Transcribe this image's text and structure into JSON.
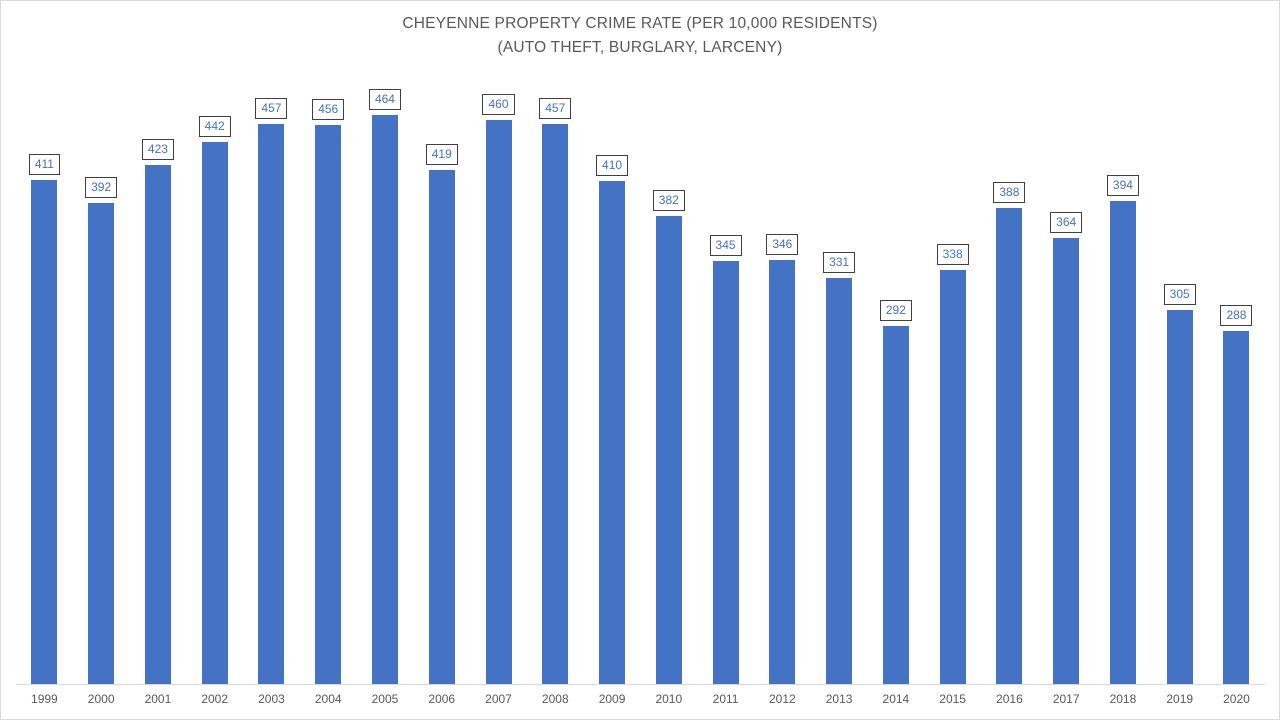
{
  "chart": {
    "title_line1": "CHEYENNE PROPERTY CRIME RATE (PER 10,000 RESIDENTS)",
    "title_line2": "(AUTO THEFT, BURGLARY, LARCENY)"
  },
  "chart_data": {
    "type": "bar",
    "title": "CHEYENNE PROPERTY CRIME RATE (PER 10,000 RESIDENTS) (AUTO THEFT, BURGLARY, LARCENY)",
    "categories": [
      "1999",
      "2000",
      "2001",
      "2002",
      "2003",
      "2004",
      "2005",
      "2006",
      "2007",
      "2008",
      "2009",
      "2010",
      "2011",
      "2012",
      "2013",
      "2014",
      "2015",
      "2016",
      "2017",
      "2018",
      "2019",
      "2020"
    ],
    "values": [
      411,
      392,
      423,
      442,
      457,
      456,
      464,
      419,
      460,
      457,
      410,
      382,
      345,
      346,
      331,
      292,
      338,
      388,
      364,
      394,
      305,
      288
    ],
    "xlabel": "",
    "ylabel": "",
    "ylim": [
      0,
      500
    ],
    "grid": false,
    "legend": false,
    "data_labels": "boxed values above each bar",
    "colors": {
      "bar": "#4472c4",
      "data_label_text": "#4472c4",
      "data_label_border": "#404040",
      "title_text": "#595959",
      "axis_text": "#595959",
      "axis_line": "#d9d9d9"
    }
  }
}
